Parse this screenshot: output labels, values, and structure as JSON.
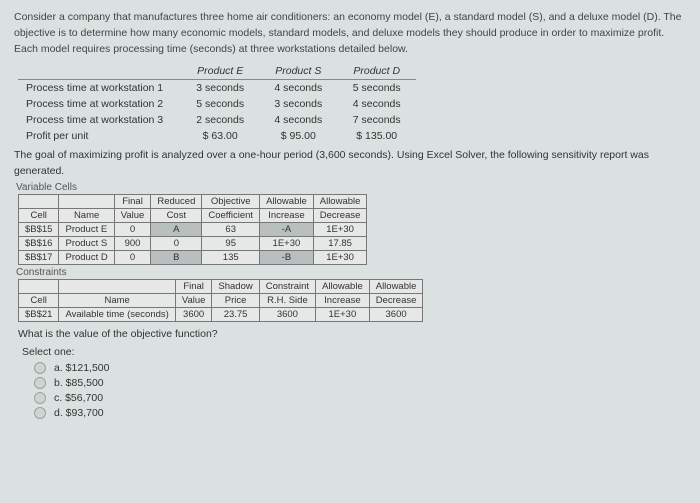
{
  "intro_text": "Consider a company that manufactures three home air conditioners: an economy model (E), a standard model (S), and a deluxe model (D). The objective is to determine how many economic models, standard models, and deluxe models they should produce in order to maximize profit. Each model requires processing time (seconds) at three workstations detailed below.",
  "wk_table": {
    "headers": [
      "",
      "Product E",
      "Product S",
      "Product D"
    ],
    "rows": [
      [
        "Process time at workstation 1",
        "3 seconds",
        "4 seconds",
        "5 seconds"
      ],
      [
        "Process time at workstation 2",
        "5 seconds",
        "3 seconds",
        "4 seconds"
      ],
      [
        "Process time at workstation 3",
        "2 seconds",
        "4 seconds",
        "7 seconds"
      ],
      [
        "Profit per unit",
        "$      63.00",
        "$      95.00",
        "$    135.00"
      ]
    ]
  },
  "mid_text": "The goal of maximizing profit is analyzed over a one-hour period (3,600 seconds). Using Excel Solver, the following sensitivity report was generated.",
  "var_label": "Variable Cells",
  "var_table": {
    "head1": [
      "",
      "",
      "Final",
      "Reduced",
      "Objective",
      "Allowable",
      "Allowable"
    ],
    "head2": [
      "Cell",
      "Name",
      "Value",
      "Cost",
      "Coefficient",
      "Increase",
      "Decrease"
    ],
    "rows": [
      {
        "cell": "$B$15",
        "name": "Product E",
        "fv": "0",
        "rc": "A",
        "obj": "63",
        "ai": "-A",
        "ad": "1E+30",
        "shade_rc": true,
        "shade_ai": true
      },
      {
        "cell": "$B$16",
        "name": "Product S",
        "fv": "900",
        "rc": "0",
        "obj": "95",
        "ai": "1E+30",
        "ad": "17.85"
      },
      {
        "cell": "$B$17",
        "name": "Product D",
        "fv": "0",
        "rc": "B",
        "obj": "135",
        "ai": "-B",
        "ad": "1E+30",
        "shade_rc": true,
        "shade_ai": true
      }
    ]
  },
  "con_label": "Constraints",
  "con_table": {
    "head1": [
      "",
      "",
      "Final",
      "Shadow",
      "Constraint",
      "Allowable",
      "Allowable"
    ],
    "head2": [
      "Cell",
      "Name",
      "Value",
      "Price",
      "R.H. Side",
      "Increase",
      "Decrease"
    ],
    "rows": [
      {
        "cell": "$B$21",
        "name": "Available time (seconds)",
        "fv": "3600",
        "sp": "23.75",
        "rhs": "3600",
        "ai": "1E+30",
        "ad": "3600"
      }
    ]
  },
  "question": "What is the value of the objective function?",
  "select_label": "Select one:",
  "options": {
    "a": "a. $121,500",
    "b": "b. $85,500",
    "c": "c. $56,700",
    "d": "d. $93,700"
  }
}
